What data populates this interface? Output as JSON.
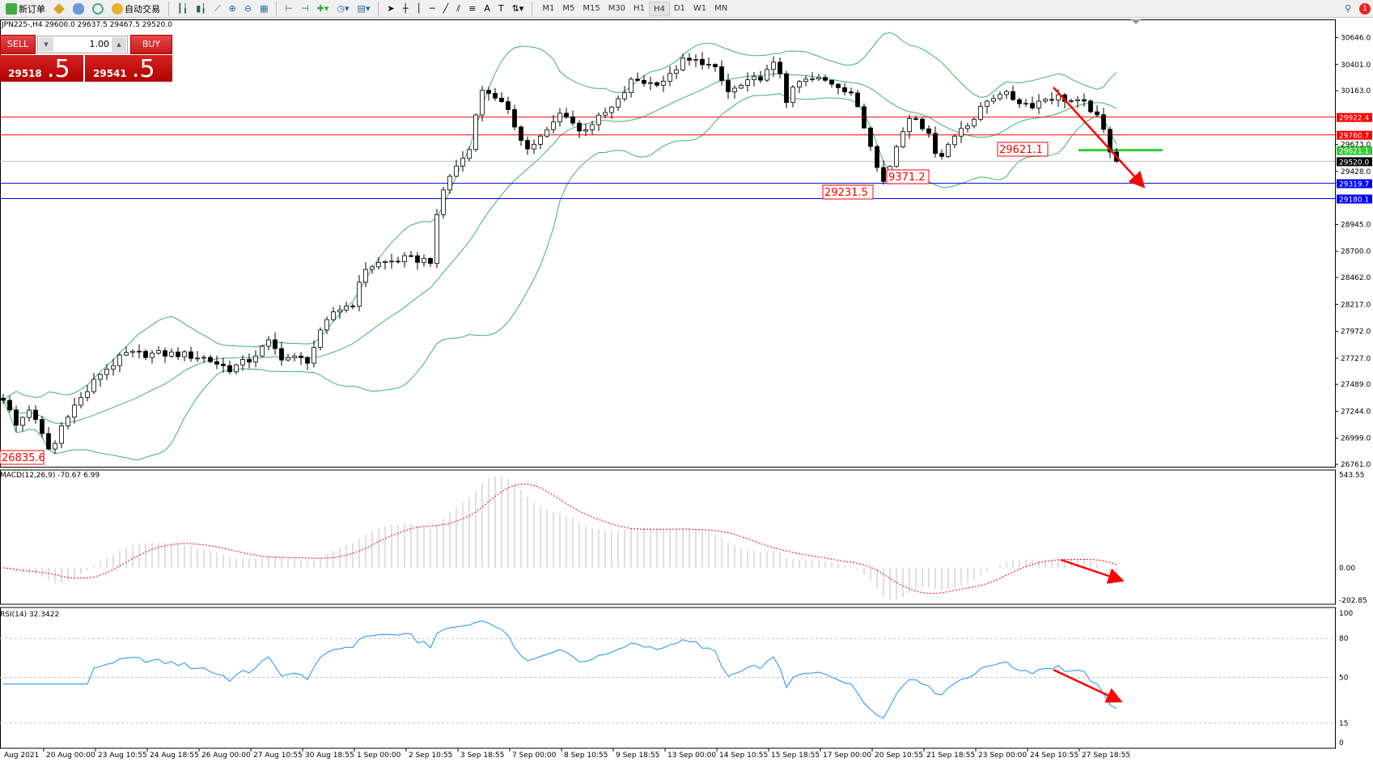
{
  "toolbar": {
    "new_order": "新订单",
    "auto_trading": "自动交易",
    "timeframes": [
      "M1",
      "M5",
      "M15",
      "M30",
      "H1",
      "H4",
      "D1",
      "W1",
      "MN"
    ],
    "active_timeframe": "H4",
    "notification_count": "1"
  },
  "chart": {
    "info": "JPN225-,H4  29600.0 29637.5 29467.5 29520.0",
    "trade_panel": {
      "sell_label": "SELL",
      "buy_label": "BUY",
      "lot": "1.00",
      "sell_price_small": "29518",
      "sell_price_large": ".5",
      "buy_price_small": "29541",
      "buy_price_large": ".5"
    },
    "price_axis": [
      "30646.0",
      "30401.0",
      "30163.0",
      "29673.0",
      "29428.0",
      "28945.0",
      "28700.0",
      "28462.0",
      "28217.0",
      "27972.0",
      "27727.0",
      "27489.0",
      "27244.0",
      "26999.0",
      "26761.0"
    ],
    "price_range": [
      26761.0,
      30646.0
    ],
    "levels": [
      {
        "value": "29922.4",
        "color": "#ff0000",
        "label_bg": "#ff0000"
      },
      {
        "value": "29760.7",
        "color": "#ff0000",
        "label_bg": "#ff0000"
      },
      {
        "value": "29621.1",
        "color": "#33cc33",
        "label_bg": "#33cc33",
        "short": true
      },
      {
        "value": "29520.0",
        "color": "#c0c0c0",
        "label_bg": "#000000"
      },
      {
        "value": "29319.7",
        "color": "#0000ff",
        "label_bg": "#0000ff"
      },
      {
        "value": "29180.1",
        "color": "#0000ff",
        "label_bg": "#0000ff"
      }
    ],
    "annotations": [
      "29621.1",
      "9371.2",
      "29231.5",
      "26835.6"
    ],
    "macd": {
      "label": "MACD(12,26,9) -70.67 6.99",
      "axis": [
        "543.55",
        "0.00",
        "-202.85"
      ],
      "range": [
        -202.85,
        543.55
      ]
    },
    "rsi": {
      "label": "RSI(14) 32.3422",
      "axis": [
        "100",
        "80",
        "50",
        "15",
        "0"
      ],
      "levels": [
        80,
        50,
        15
      ]
    },
    "time_axis": [
      "Aug 2021",
      "20 Aug 00:00",
      "23 Aug 10:55",
      "24 Aug 18:55",
      "26 Aug 00:00",
      "27 Aug 10:55",
      "30 Aug 18:55",
      "1 Sep 00:00",
      "2 Sep 10:55",
      "3 Sep 18:55",
      "7 Sep 00:00",
      "8 Sep 10:55",
      "9 Sep 18:55",
      "13 Sep 00:00",
      "14 Sep 10:55",
      "15 Sep 18:55",
      "17 Sep 00:00",
      "20 Sep 10:55",
      "21 Sep 18:55",
      "23 Sep 00:00",
      "24 Sep 10:55",
      "27 Sep 18:55"
    ],
    "colors": {
      "bands": "#3cb371",
      "macd_signal": "#ff0000",
      "macd_hist": "#c0c0c0",
      "rsi": "#1e90ff",
      "arrow": "#ff0000"
    }
  },
  "chart_data": {
    "type": "candlestick",
    "symbol": "JPN225-",
    "timeframe": "H4",
    "close_path": [
      [
        0,
        27366
      ],
      [
        2,
        27112
      ],
      [
        4,
        27270
      ],
      [
        7,
        26900
      ],
      [
        8,
        26950
      ],
      [
        9.5,
        27190
      ],
      [
        13,
        27430
      ],
      [
        15,
        27590
      ],
      [
        19,
        27765
      ],
      [
        23,
        27765
      ],
      [
        27,
        27765
      ],
      [
        31,
        27730
      ],
      [
        35,
        27630
      ],
      [
        38,
        27710
      ],
      [
        41,
        27870
      ],
      [
        43,
        27740
      ],
      [
        47,
        27710
      ],
      [
        49,
        27950
      ],
      [
        51,
        28150
      ],
      [
        54,
        28230
      ],
      [
        56,
        28550
      ],
      [
        58,
        28590
      ],
      [
        62,
        28630
      ],
      [
        66,
        28620
      ],
      [
        67.5,
        29190
      ],
      [
        69,
        29390
      ],
      [
        72,
        29630
      ],
      [
        73.5,
        30150
      ],
      [
        75.5,
        30150
      ],
      [
        77.7,
        29990
      ],
      [
        81,
        29630
      ],
      [
        84,
        29790
      ],
      [
        86.5,
        29990
      ],
      [
        89,
        29790
      ],
      [
        92,
        29910
      ],
      [
        94.6,
        30030
      ],
      [
        97.3,
        30270
      ],
      [
        100,
        30230
      ],
      [
        102.7,
        30270
      ],
      [
        104.7,
        30430
      ],
      [
        108,
        30430
      ],
      [
        110,
        30350
      ],
      [
        112,
        30150
      ],
      [
        115,
        30230
      ],
      [
        117.6,
        30310
      ],
      [
        119.6,
        30430
      ],
      [
        121,
        30080
      ],
      [
        123,
        30240
      ],
      [
        125.7,
        30270
      ],
      [
        128.4,
        30230
      ],
      [
        131,
        30150
      ],
      [
        133,
        29830
      ],
      [
        134.5,
        29590
      ],
      [
        135.8,
        29350
      ],
      [
        137,
        29470
      ],
      [
        138.5,
        29740
      ],
      [
        140.5,
        29980
      ],
      [
        142.6,
        29790
      ],
      [
        144.6,
        29550
      ],
      [
        146,
        29670
      ],
      [
        148,
        29830
      ],
      [
        150,
        29910
      ],
      [
        152,
        30070
      ],
      [
        154,
        30150
      ],
      [
        156.8,
        30070
      ],
      [
        158.8,
        30030
      ],
      [
        160.8,
        30090
      ],
      [
        162.8,
        30110
      ],
      [
        164.9,
        30070
      ],
      [
        167.6,
        30030
      ],
      [
        169.6,
        29860
      ],
      [
        171,
        29630
      ],
      [
        172.7,
        29520
      ]
    ]
  }
}
